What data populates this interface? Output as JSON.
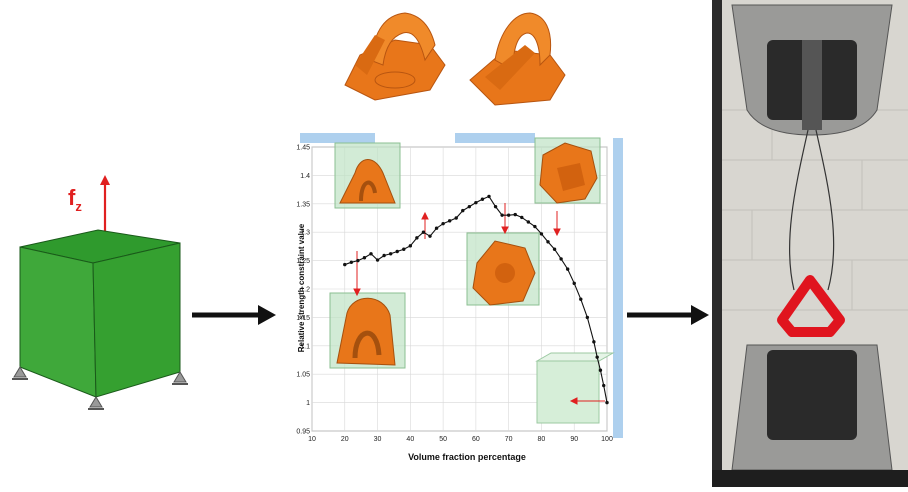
{
  "load_label": {
    "main": "f",
    "sub": "z"
  },
  "chart_data": {
    "type": "line",
    "xlabel": "Volume fraction percentage",
    "ylabel": "Relative strength constraint value",
    "xlim": [
      10,
      100
    ],
    "ylim": [
      0.95,
      1.45
    ],
    "xticks": [
      "10",
      "20",
      "30",
      "40",
      "50",
      "60",
      "70",
      "80",
      "90",
      "100"
    ],
    "yticks": [
      "0.95",
      "1",
      "1.05",
      "1.1",
      "1.15",
      "1.2",
      "1.25",
      "1.3",
      "1.35",
      "1.4",
      "1.45"
    ],
    "grid": true,
    "series": [
      {
        "x": [
          20,
          22,
          24,
          26,
          28,
          30,
          32,
          34,
          36,
          38,
          40,
          42,
          44,
          46,
          48,
          50,
          52,
          54,
          56,
          58,
          60,
          62,
          64,
          66,
          68,
          70,
          72,
          74,
          76,
          78,
          80,
          82,
          84,
          86,
          88,
          90,
          92,
          94,
          96,
          97,
          98,
          99,
          100
        ],
        "y": [
          1.243,
          1.247,
          1.25,
          1.255,
          1.262,
          1.251,
          1.259,
          1.262,
          1.266,
          1.27,
          1.276,
          1.29,
          1.3,
          1.293,
          1.307,
          1.315,
          1.32,
          1.325,
          1.338,
          1.345,
          1.352,
          1.358,
          1.363,
          1.345,
          1.33,
          1.33,
          1.331,
          1.326,
          1.318,
          1.31,
          1.297,
          1.283,
          1.27,
          1.253,
          1.235,
          1.21,
          1.182,
          1.15,
          1.107,
          1.08,
          1.057,
          1.03,
          1.0
        ]
      }
    ]
  },
  "colors": {
    "cube_front": "#3fa83a",
    "cube_top": "#2f9a2d",
    "cube_side": "#1f7a22",
    "load_arrow": "#e02020",
    "series": "#111111",
    "part_orange": "#e8761a",
    "chart_frame": "#aed0ee",
    "grid": "#d8d8d8"
  }
}
